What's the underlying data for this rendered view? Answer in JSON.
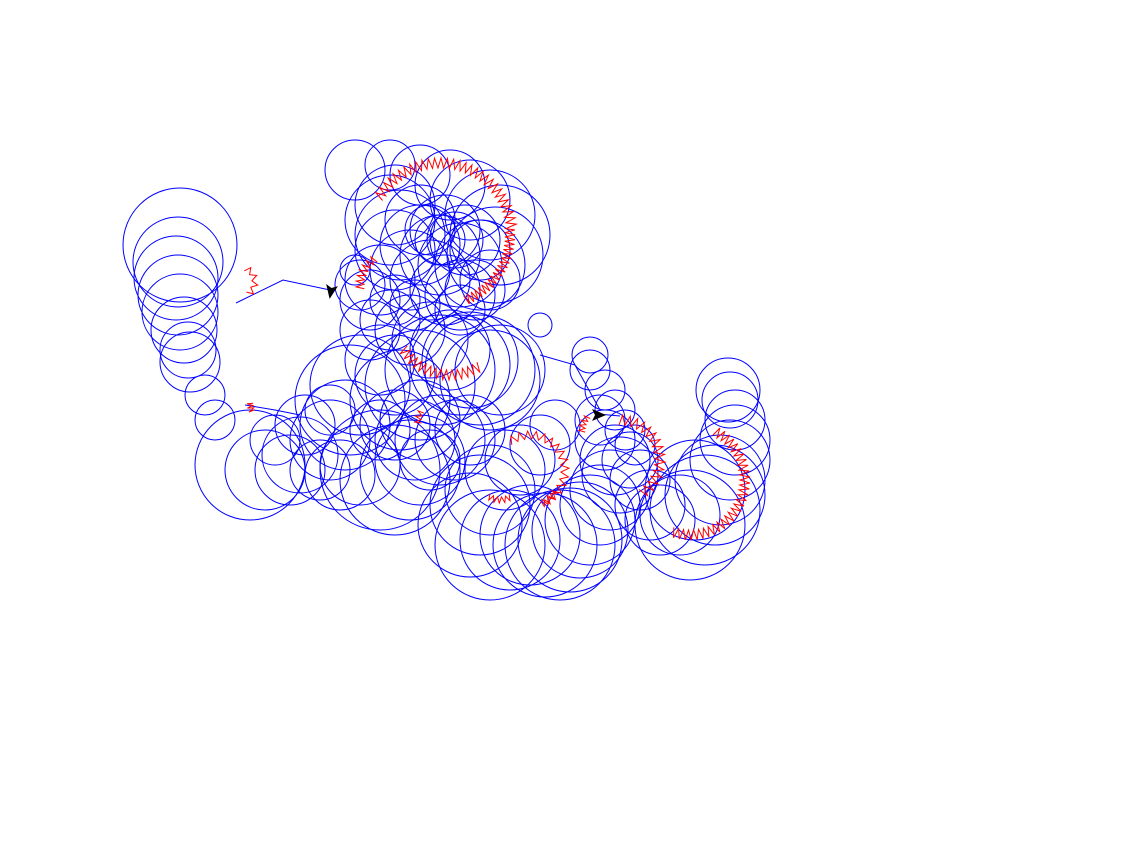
{
  "colors": {
    "background": "#ffffff",
    "circle_stroke": "#0000ff",
    "zigzag_stroke": "#ff0000",
    "turtle_fill": "#000000"
  },
  "drawing": {
    "circle_count": 130,
    "zigzag_segments": 13,
    "turtle_count": 2
  }
}
